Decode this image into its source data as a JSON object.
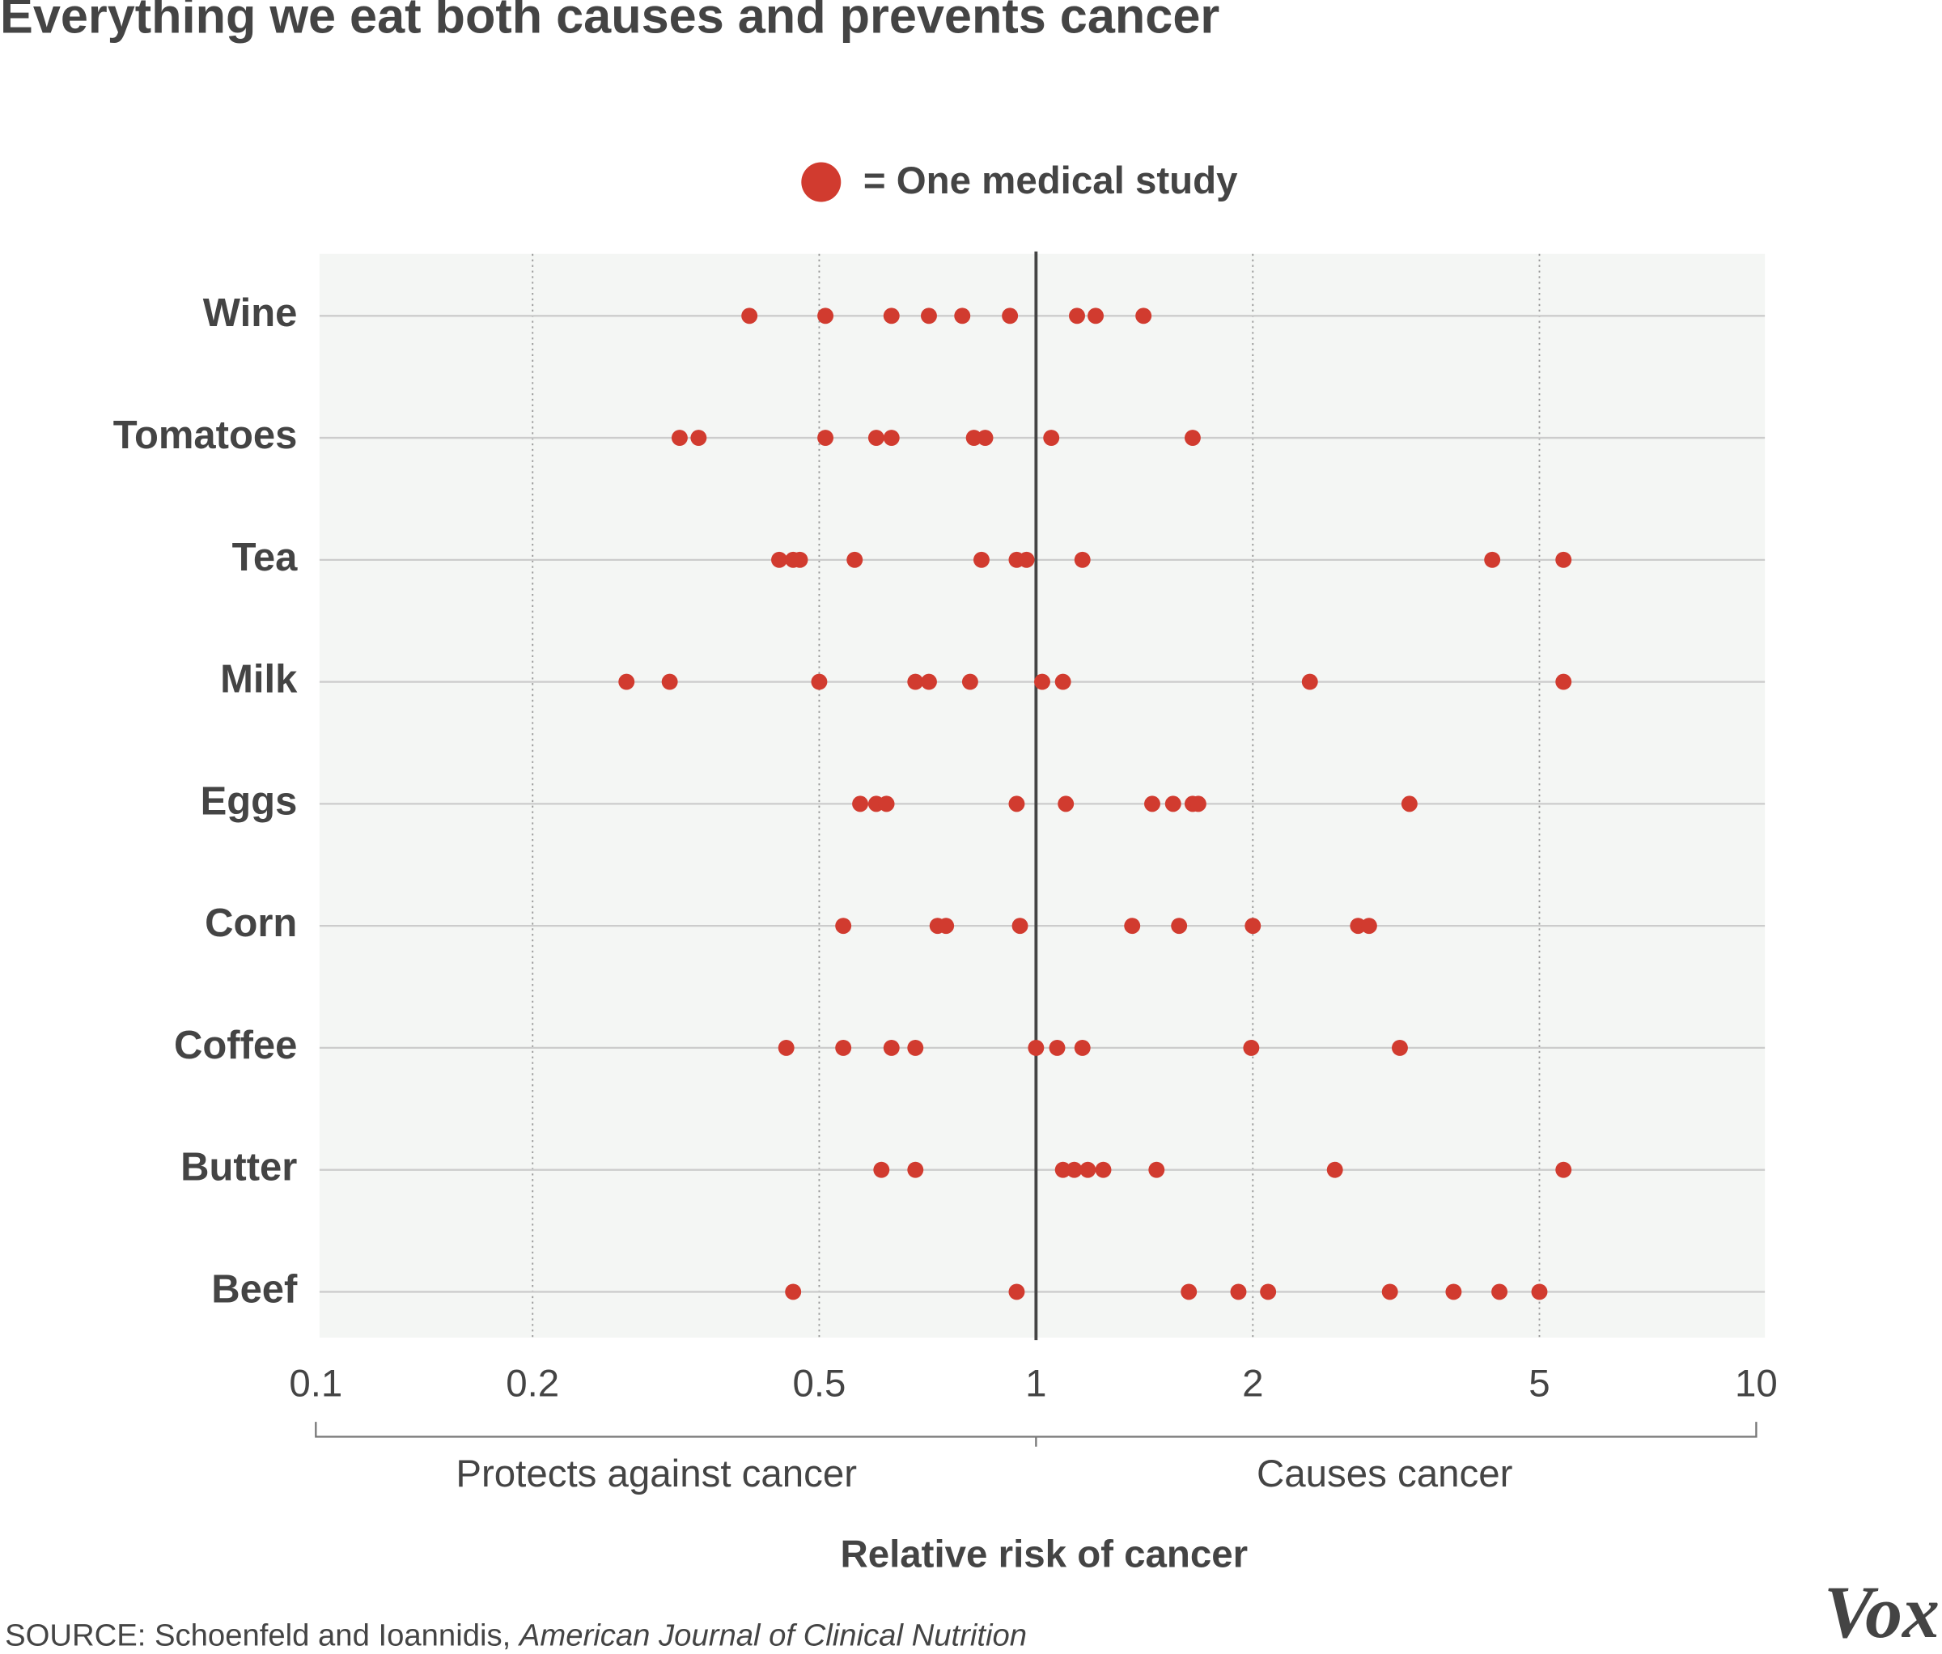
{
  "chart_data": {
    "type": "strip",
    "title": "Everything we eat both causes and prevents cancer",
    "legend_label": "= One medical study",
    "x_label": "Relative risk of cancer",
    "annotations": {
      "left": "Protects against cancer",
      "right": "Causes cancer"
    },
    "source": {
      "text": "SOURCE: Schoenfeld and Ioannidis,",
      "journal": "American Journal of Clinical Nutrition"
    },
    "logo": "Vox",
    "color": "#d13b2f",
    "xscale": "log",
    "xlim": [
      0.1,
      10
    ],
    "xticks": [
      0.1,
      0.2,
      0.5,
      1,
      2,
      5,
      10
    ],
    "reference_line": 1,
    "grid": true,
    "categories": [
      "Wine",
      "Tomatoes",
      "Tea",
      "Milk",
      "Eggs",
      "Corn",
      "Coffee",
      "Butter",
      "Beef"
    ],
    "values": [
      [
        0.4,
        0.51,
        0.63,
        0.71,
        0.79,
        0.92,
        1.14,
        1.21,
        1.41
      ],
      [
        0.32,
        0.34,
        0.51,
        0.6,
        0.63,
        0.82,
        0.85,
        1.05,
        1.65
      ],
      [
        0.44,
        0.46,
        0.47,
        0.56,
        0.84,
        0.94,
        0.97,
        1.16,
        4.3,
        5.4
      ],
      [
        0.27,
        0.31,
        0.5,
        0.68,
        0.71,
        0.81,
        1.02,
        1.09,
        2.4,
        5.4
      ],
      [
        0.57,
        0.6,
        0.62,
        0.94,
        1.1,
        1.45,
        1.55,
        1.65,
        1.68,
        3.3
      ],
      [
        0.54,
        0.73,
        0.75,
        0.95,
        1.36,
        1.58,
        2.0,
        2.8,
        2.9
      ],
      [
        0.45,
        0.54,
        0.63,
        0.68,
        1.0,
        1.07,
        1.16,
        1.99,
        3.2
      ],
      [
        0.61,
        0.68,
        1.09,
        1.13,
        1.18,
        1.24,
        1.47,
        2.6,
        5.4
      ],
      [
        0.46,
        0.94,
        1.63,
        1.91,
        2.1,
        3.1,
        3.8,
        4.4,
        5.0
      ]
    ]
  }
}
